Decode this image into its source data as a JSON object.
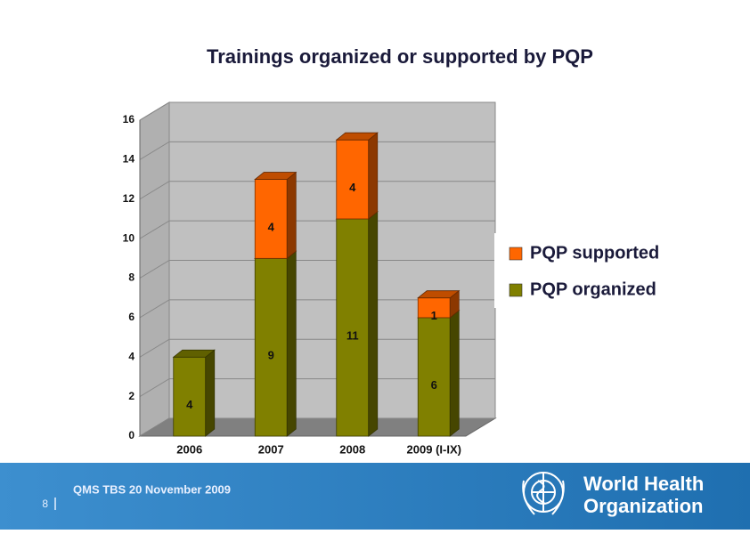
{
  "chart_data": {
    "type": "bar3d-stacked",
    "title": "Trainings organized or supported by PQP",
    "categories": [
      "2006",
      "2007",
      "2008",
      "2009 (I-IX)"
    ],
    "series": [
      {
        "name": "PQP organized",
        "color": "#808000",
        "values": [
          4,
          9,
          11,
          6
        ]
      },
      {
        "name": "PQP supported",
        "color": "#ff6600",
        "values": [
          null,
          4,
          4,
          1
        ]
      }
    ],
    "ylim": [
      0,
      16
    ],
    "yticks": [
      0,
      2,
      4,
      6,
      8,
      10,
      12,
      14,
      16
    ],
    "grid": true,
    "legend": "right"
  },
  "footer": {
    "note": "QMS TBS 20 November 2009",
    "page": "8",
    "org_line1": "World Health",
    "org_line2": "Organization"
  }
}
